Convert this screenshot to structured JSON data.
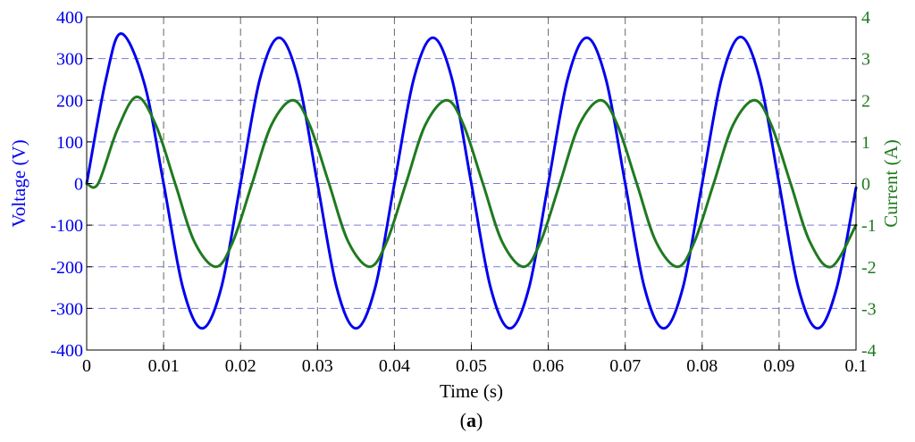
{
  "chart_data": {
    "type": "line",
    "caption": "(a)",
    "caption_letter": "a",
    "xlabel": "Time (s)",
    "ylabel_left": "Voltage (V)",
    "ylabel_right": "Current (A)",
    "xlim": [
      0,
      0.1
    ],
    "ylim_left": [
      -400,
      400
    ],
    "ylim_right": [
      -4,
      4
    ],
    "x_ticks": [
      "0",
      "0.01",
      "0.02",
      "0.03",
      "0.04",
      "0.05",
      "0.06",
      "0.07",
      "0.08",
      "0.09",
      "0.1"
    ],
    "y_ticks_left": [
      "400",
      "300",
      "200",
      "100",
      "0",
      "-100",
      "-200",
      "-300",
      "-400"
    ],
    "y_ticks_right": [
      "4",
      "3",
      "2",
      "1",
      "0",
      "-1",
      "-2",
      "-3",
      "-4"
    ],
    "grid": true,
    "series": [
      {
        "axis": "left",
        "color": "#0000ee",
        "x": [
          0,
          0.0025,
          0.0045,
          0.0075,
          0.01,
          0.0125,
          0.015,
          0.0175,
          0.02,
          0.0225,
          0.025,
          0.0275,
          0.03,
          0.0325,
          0.035,
          0.0375,
          0.04,
          0.0425,
          0.045,
          0.0475,
          0.05,
          0.0525,
          0.055,
          0.0575,
          0.06,
          0.0625,
          0.065,
          0.0675,
          0.07,
          0.0725,
          0.075,
          0.0775,
          0.08,
          0.0825,
          0.085,
          0.0875,
          0.09,
          0.0925,
          0.095,
          0.0975,
          0.1
        ],
        "y": [
          0,
          250,
          360,
          240,
          0,
          -250,
          -348,
          -250,
          0,
          250,
          350,
          250,
          0,
          -250,
          -348,
          -250,
          0,
          250,
          350,
          250,
          0,
          -250,
          -348,
          -250,
          0,
          250,
          350,
          250,
          0,
          -250,
          -348,
          -250,
          0,
          250,
          352,
          250,
          0,
          -250,
          -348,
          -250,
          -10
        ]
      },
      {
        "axis": "right",
        "color": "#1f7a1f",
        "x": [
          0,
          0.0015,
          0.004,
          0.0065,
          0.009,
          0.0115,
          0.014,
          0.0168,
          0.019,
          0.0215,
          0.024,
          0.0268,
          0.029,
          0.0315,
          0.034,
          0.0368,
          0.039,
          0.0415,
          0.044,
          0.0468,
          0.049,
          0.0515,
          0.054,
          0.0568,
          0.059,
          0.0615,
          0.064,
          0.0668,
          0.069,
          0.0715,
          0.074,
          0.0768,
          0.079,
          0.0815,
          0.084,
          0.0868,
          0.089,
          0.0915,
          0.094,
          0.0968,
          0.1
        ],
        "y": [
          0,
          0,
          1.3,
          2.08,
          1.4,
          0,
          -1.4,
          -2.0,
          -1.4,
          0,
          1.4,
          2.0,
          1.4,
          0,
          -1.4,
          -2.0,
          -1.4,
          0,
          1.4,
          2.0,
          1.4,
          0,
          -1.4,
          -2.0,
          -1.4,
          0,
          1.4,
          2.0,
          1.4,
          0,
          -1.4,
          -2.0,
          -1.4,
          0,
          1.4,
          2.0,
          1.4,
          0,
          -1.4,
          -2.0,
          -1.0
        ]
      }
    ],
    "colors": {
      "left_axis": "#0000ee",
      "right_axis": "#1f7a1f",
      "grid_h": "#7b7bdb",
      "grid_v": "#666666",
      "frame": "#000000"
    }
  }
}
